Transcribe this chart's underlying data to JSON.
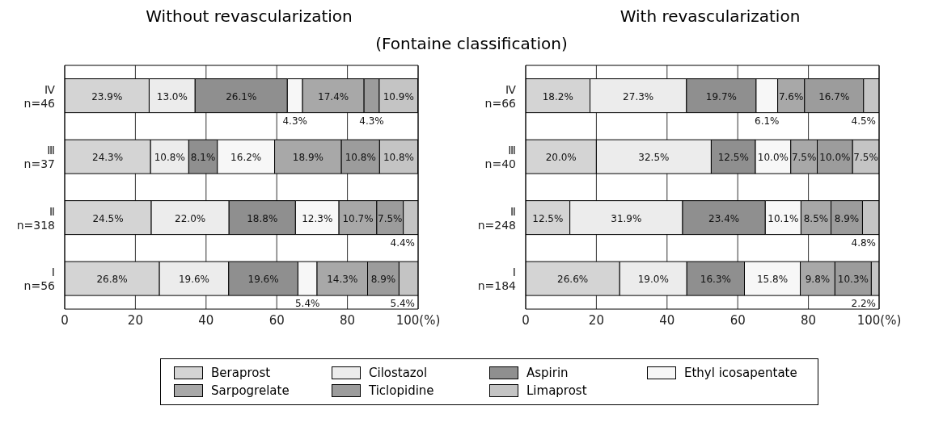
{
  "chart_data": [
    {
      "type": "bar",
      "orientation": "horizontal",
      "stacked": true,
      "title": "Without revascularization",
      "subtitle": "(Fontaine classification)",
      "categories": [
        "Ⅳ\nn=46",
        "Ⅲ\nn=37",
        "Ⅱ\nn=318",
        "Ⅰ\nn=56"
      ],
      "xlim": [
        0,
        100
      ],
      "xticks": [
        0,
        20,
        40,
        60,
        80,
        {
          "value": 100,
          "label": "100(%)"
        }
      ],
      "grid": "x",
      "legend": "bottom",
      "series": [
        {
          "name": "Beraprost",
          "color": "#d4d4d4",
          "values": [
            23.9,
            24.3,
            24.5,
            26.8
          ],
          "value_labels": [
            "23.9%",
            "24.3%",
            "24.5%",
            "26.8%"
          ]
        },
        {
          "name": "Cilostazol",
          "color": "#ececec",
          "values": [
            13.0,
            10.8,
            22.0,
            19.6
          ],
          "value_labels": [
            "13.0%",
            "10.8%",
            "22.0%",
            "19.6%"
          ]
        },
        {
          "name": "Aspirin",
          "color": "#8f8f8f",
          "values": [
            26.1,
            8.1,
            18.8,
            19.6
          ],
          "value_labels": [
            "26.1%",
            "8.1%",
            "18.8%",
            "19.6%"
          ]
        },
        {
          "name": "Ethyl icosapentate",
          "color": "#f7f7f7",
          "values": [
            4.3,
            16.2,
            12.3,
            5.4
          ],
          "value_labels": [
            "4.3%",
            "16.2%",
            "12.3%",
            "5.4%"
          ]
        },
        {
          "name": "Sarpogrelate",
          "color": "#a8a8a8",
          "values": [
            17.4,
            18.9,
            10.7,
            14.3
          ],
          "value_labels": [
            "17.4%",
            "18.9%",
            "10.7%",
            "14.3%"
          ]
        },
        {
          "name": "Ticlopidine",
          "color": "#9c9c9c",
          "values": [
            4.3,
            10.8,
            7.5,
            8.9
          ],
          "value_labels": [
            "4.3%",
            "10.8%",
            "7.5%",
            "8.9%"
          ]
        },
        {
          "name": "Limaprost",
          "color": "#c4c4c4",
          "values": [
            10.9,
            10.8,
            4.4,
            5.4
          ],
          "value_labels": [
            "10.9%",
            "10.8%",
            "4.4%",
            "5.4%"
          ]
        }
      ]
    },
    {
      "type": "bar",
      "orientation": "horizontal",
      "stacked": true,
      "title": "With revascularization",
      "categories": [
        "Ⅳ\nn=66",
        "Ⅲ\nn=40",
        "Ⅱ\nn=248",
        "Ⅰ\nn=184"
      ],
      "xlim": [
        0,
        100
      ],
      "xticks": [
        0,
        20,
        40,
        60,
        80,
        {
          "value": 100,
          "label": "100(%)"
        }
      ],
      "grid": "x",
      "series": [
        {
          "color": "#d4d4d4",
          "values": [
            18.2,
            20.0,
            12.5,
            26.6
          ],
          "value_labels": [
            "18.2%",
            "20.0%",
            "12.5%",
            "26.6%"
          ]
        },
        {
          "color": "#ececec",
          "values": [
            27.3,
            32.5,
            31.9,
            19.0
          ],
          "value_labels": [
            "27.3%",
            "32.5%",
            "31.9%",
            "19.0%"
          ]
        },
        {
          "color": "#8f8f8f",
          "values": [
            19.7,
            12.5,
            23.4,
            16.3
          ],
          "value_labels": [
            "19.7%",
            "12.5%",
            "23.4%",
            "16.3%"
          ]
        },
        {
          "color": "#f7f7f7",
          "values": [
            6.1,
            10.0,
            10.1,
            15.8
          ],
          "value_labels": [
            "6.1%",
            "10.0%",
            "10.1%",
            "15.8%"
          ]
        },
        {
          "color": "#a8a8a8",
          "values": [
            7.6,
            7.5,
            8.5,
            9.8
          ],
          "value_labels": [
            "7.6%",
            "7.5%",
            "8.5%",
            "9.8%"
          ]
        },
        {
          "color": "#9c9c9c",
          "values": [
            16.7,
            10.0,
            8.9,
            10.3
          ],
          "value_labels": [
            "16.7%",
            "10.0%",
            "8.9%",
            "10.3%"
          ]
        },
        {
          "color": "#c4c4c4",
          "values": [
            4.5,
            7.5,
            4.8,
            2.2
          ],
          "value_labels": [
            "4.5%",
            "7.5%",
            "4.8%",
            "2.2%"
          ]
        }
      ]
    }
  ]
}
